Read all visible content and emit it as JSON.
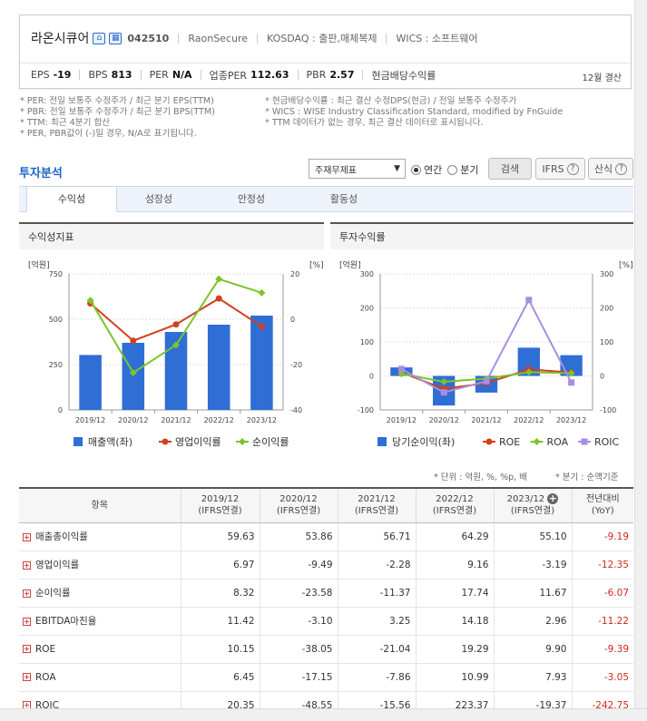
{
  "company": {
    "name": "라온시큐어",
    "code": "042510",
    "eng_name": "RaonSecure",
    "market": "KOSDAQ : 출판,매체복제",
    "wics": "WICS : 소프트웨어",
    "icons": [
      "home-icon",
      "building-icon"
    ],
    "metrics": [
      {
        "label": "EPS",
        "value": "-19"
      },
      {
        "label": "BPS",
        "value": "813"
      },
      {
        "label": "PER",
        "value": "N/A"
      },
      {
        "label": "업종PER",
        "value": "112.63"
      },
      {
        "label": "PBR",
        "value": "2.57"
      },
      {
        "label": "현금배당수익률",
        "value": ""
      }
    ],
    "settlement": "12월 결산"
  },
  "notes": {
    "left": [
      "* PER: 전일 보통주 수정주가 / 최근 분기 EPS(TTM)",
      "* PBR: 전일 보통주 수정주가 / 최근 분기 BPS(TTM)",
      "* TTM: 최근 4분기 합산",
      "* PER, PBR값이 (-)일 경우, N/A로 표기됩니다."
    ],
    "right": [
      "* 현금배당수익률 : 최근 결산 수정DPS(현금) / 전일 보통주 수정주가",
      "* WICS : WISE Industry Classification Standard, modified by FnGuide",
      "* TTM 데이터가 없는 경우, 최근 결산 데이터로 표시됩니다."
    ]
  },
  "controls": {
    "section_title": "투자분석",
    "select_value": "주재무제표",
    "radio_annual": "연간",
    "radio_quarter": "분기",
    "search_btn": "검색",
    "ifrs_btn": "IFRS",
    "formula_btn": "산식"
  },
  "tabs": [
    "수익성",
    "성장성",
    "안정성",
    "활동성"
  ],
  "panels": {
    "left_title": "수익성지표",
    "right_title": "투자수익률"
  },
  "chart_data": [
    {
      "type": "bar",
      "categories": [
        "2019/12",
        "2020/12",
        "2021/12",
        "2022/12",
        "2023/12"
      ],
      "left_axis_unit": "[억원]",
      "right_axis_unit": "[%]",
      "left_ylim": [
        0,
        750
      ],
      "left_ticks": [
        0,
        250,
        500,
        750
      ],
      "right_ylim": [
        -40,
        20
      ],
      "right_ticks": [
        -40,
        -20,
        0,
        20
      ],
      "series": [
        {
          "name": "매출액(좌)",
          "type": "bar",
          "axis": "left",
          "color": "#2e6ed5",
          "values": [
            303,
            370,
            430,
            470,
            520
          ]
        },
        {
          "name": "영업이익률",
          "type": "line",
          "axis": "right",
          "color": "#d2401f",
          "values": [
            6.97,
            -9.49,
            -2.28,
            9.16,
            -3.19
          ]
        },
        {
          "name": "순이익률",
          "type": "line",
          "axis": "right",
          "color": "#7cc42b",
          "values": [
            8.32,
            -23.58,
            -11.37,
            17.74,
            11.67
          ]
        }
      ]
    },
    {
      "type": "bar",
      "categories": [
        "2019/12",
        "2020/12",
        "2021/12",
        "2022/12",
        "2023/12"
      ],
      "left_axis_unit": "[억원]",
      "right_axis_unit": "[%]",
      "left_ylim": [
        -100,
        300
      ],
      "left_ticks": [
        -100,
        0,
        100,
        200,
        300
      ],
      "right_ylim": [
        -100,
        300
      ],
      "right_ticks": [
        -100,
        0,
        100,
        200,
        300
      ],
      "series": [
        {
          "name": "당기순이익(좌)",
          "type": "bar",
          "axis": "left",
          "color": "#2e6ed5",
          "values": [
            25,
            -87,
            -49,
            83,
            61
          ]
        },
        {
          "name": "ROE",
          "type": "line",
          "axis": "right",
          "color": "#d2401f",
          "values": [
            10.15,
            -38.05,
            -21.04,
            19.29,
            9.9
          ]
        },
        {
          "name": "ROA",
          "type": "line",
          "axis": "right",
          "color": "#7cc42b",
          "values": [
            6.45,
            -17.15,
            -7.86,
            10.99,
            7.93
          ]
        },
        {
          "name": "ROIC",
          "type": "line",
          "axis": "right",
          "color": "#a98de0",
          "values": [
            20.35,
            -48.55,
            -15.56,
            223.37,
            -19.37
          ]
        }
      ]
    }
  ],
  "table": {
    "units_note": "* 단위 : 억원, %, %p, 배",
    "period_note": "* 분기 : 순액기준",
    "header_item": "항목",
    "columns": [
      {
        "year": "2019/12",
        "sub": "(IFRS연결)"
      },
      {
        "year": "2020/12",
        "sub": "(IFRS연결)"
      },
      {
        "year": "2021/12",
        "sub": "(IFRS연결)"
      },
      {
        "year": "2022/12",
        "sub": "(IFRS연결)"
      },
      {
        "year": "2023/12",
        "sub": "(IFRS연결)"
      },
      {
        "year": "전년대비",
        "sub": "(YoY)"
      }
    ],
    "rows": [
      {
        "label": "매출총이익률",
        "values": [
          "59.63",
          "53.86",
          "56.71",
          "64.29",
          "55.10",
          "-9.19"
        ]
      },
      {
        "label": "영업이익률",
        "values": [
          "6.97",
          "-9.49",
          "-2.28",
          "9.16",
          "-3.19",
          "-12.35"
        ]
      },
      {
        "label": "순이익률",
        "values": [
          "8.32",
          "-23.58",
          "-11.37",
          "17.74",
          "11.67",
          "-6.07"
        ]
      },
      {
        "label": "EBITDA마진율",
        "values": [
          "11.42",
          "-3.10",
          "3.25",
          "14.18",
          "2.96",
          "-11.22"
        ]
      },
      {
        "label": "ROE",
        "values": [
          "10.15",
          "-38.05",
          "-21.04",
          "19.29",
          "9.90",
          "-9.39"
        ]
      },
      {
        "label": "ROA",
        "values": [
          "6.45",
          "-17.15",
          "-7.86",
          "10.99",
          "7.93",
          "-3.05"
        ]
      },
      {
        "label": "ROIC",
        "values": [
          "20.35",
          "-48.55",
          "-15.56",
          "223.37",
          "-19.37",
          "-242.75"
        ]
      }
    ]
  }
}
